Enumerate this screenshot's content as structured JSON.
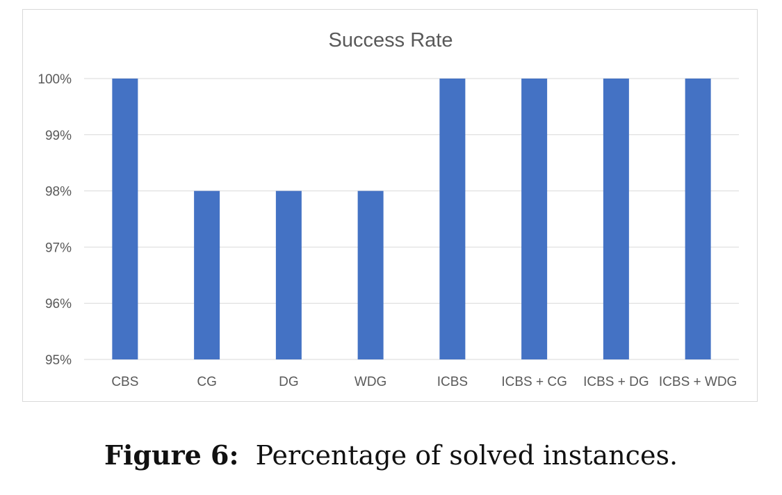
{
  "chart_data": {
    "type": "bar",
    "title": "Success Rate",
    "categories": [
      "CBS",
      "CG",
      "DG",
      "WDG",
      "ICBS",
      "ICBS + CG",
      "ICBS + DG",
      "ICBS + WDG"
    ],
    "values": [
      100,
      98,
      98,
      98,
      100,
      100,
      100,
      100
    ],
    "ylim": [
      95,
      100
    ],
    "yticks": [
      95,
      96,
      97,
      98,
      99,
      100
    ],
    "ytick_labels": [
      "95%",
      "96%",
      "97%",
      "98%",
      "99%",
      "100%"
    ],
    "xlabel": "",
    "ylabel": "",
    "grid": true,
    "bar_color": "#4472c4"
  },
  "caption": {
    "label": "Figure 6:",
    "text": "Percentage of solved instances."
  }
}
